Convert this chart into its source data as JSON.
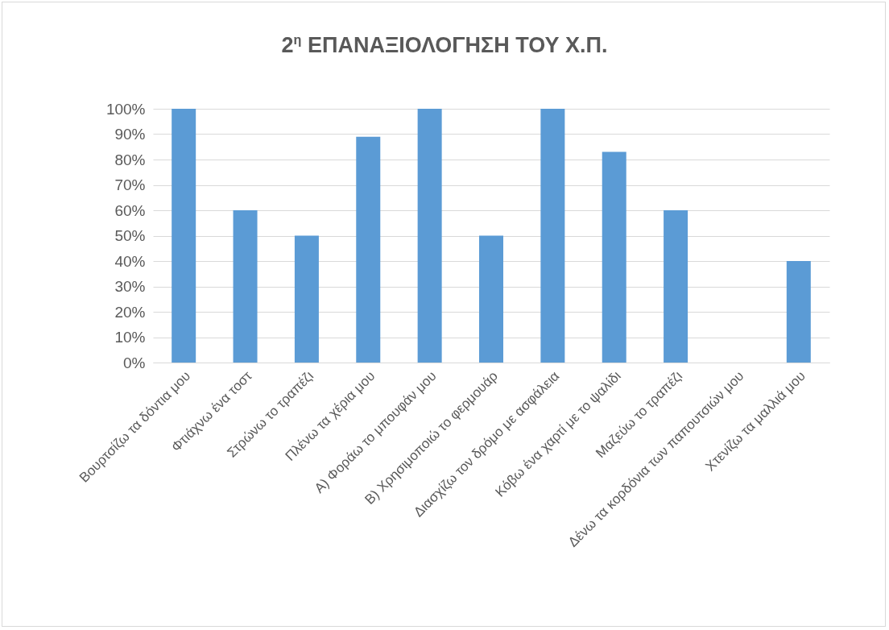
{
  "chart_data": {
    "type": "bar",
    "title": "2$^{η}$ ΕΠΑΝΑΞΙΟΛΟΓΗΣΗ ΤΟΥ Χ.Π.",
    "categories": [
      "Βουρτσίζω τα δόντια μου",
      "Φτιάχνω ένα τοστ",
      "Στρώνω το τραπέζι",
      "Πλένω τα χέρια μου",
      "Α) Φοράω το μπουφάν μου",
      "Β) Χρησιμοποιώ το φερμουάρ",
      "Διασχίζω τον δρόμο με ασφάλεια",
      "Κόβω ένα χαρτί με το ψαλίδι",
      "Μαζεύω το τραπέζι",
      "Δένω τα κορδόνια των παπουτσιών μου",
      "Χτενίζω τα μαλλιά μου"
    ],
    "values": [
      100,
      60,
      50,
      89,
      100,
      50,
      100,
      83,
      60,
      0,
      40
    ],
    "color": "#5b9bd5",
    "ylim": [
      0,
      100
    ],
    "yticks": [
      {
        "value": 0,
        "label": "0%"
      },
      {
        "value": 10,
        "label": "10%"
      },
      {
        "value": 20,
        "label": "20%"
      },
      {
        "value": 30,
        "label": "30%"
      },
      {
        "value": 40,
        "label": "40%"
      },
      {
        "value": 50,
        "label": "50%"
      },
      {
        "value": 60,
        "label": "60%"
      },
      {
        "value": 70,
        "label": "70%"
      },
      {
        "value": 80,
        "label": "80%"
      },
      {
        "value": 90,
        "label": "90%"
      },
      {
        "value": 100,
        "label": "100%"
      }
    ],
    "grid": "y"
  }
}
